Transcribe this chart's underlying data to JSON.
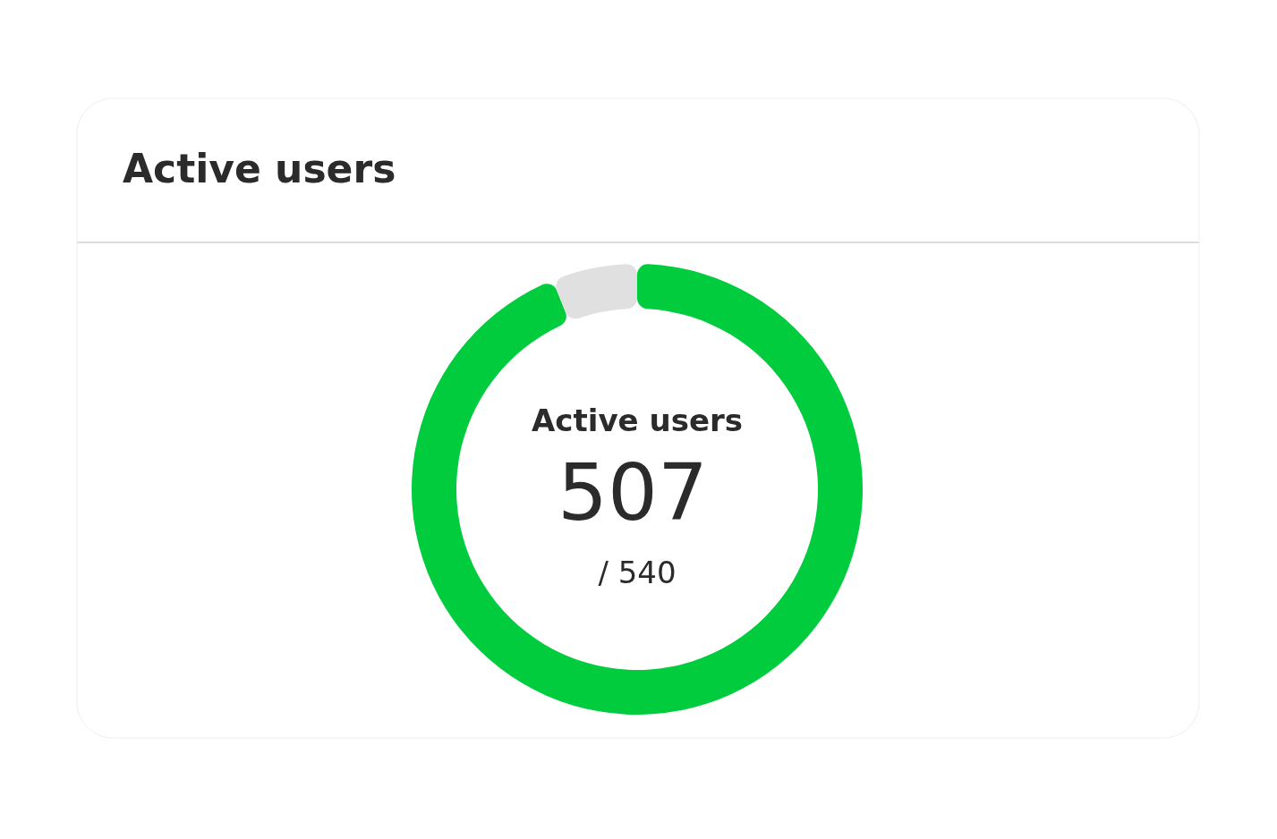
{
  "chart_data": {
    "type": "donut",
    "title": "Active users",
    "categories": [
      null,
      null
    ],
    "values": [
      93.89,
      6.11
    ],
    "colors": [
      "#00cc3d",
      "#e0e0e0"
    ],
    "annotations": [
      "Active users",
      "507",
      "/ 540"
    ]
  }
}
